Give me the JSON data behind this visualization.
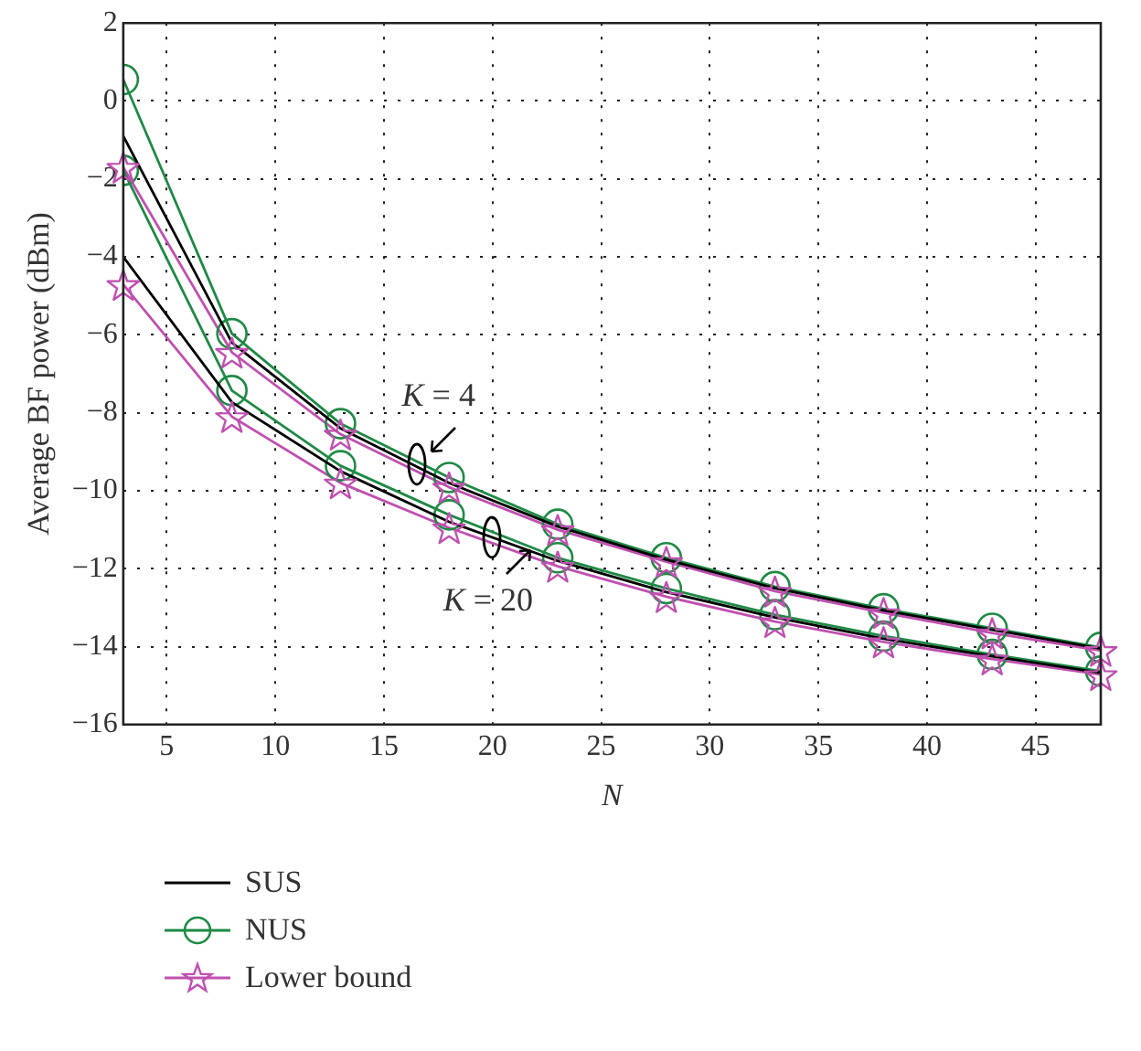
{
  "chart_data": {
    "type": "line",
    "xlabel": "N",
    "ylabel": "Average BF power (dBm)",
    "x": [
      3,
      8,
      13,
      18,
      23,
      28,
      33,
      38,
      43,
      48
    ],
    "series": [
      {
        "name": "SUS",
        "color": "#000000",
        "marker": "none",
        "values": [
          -0.9,
          -6.2,
          -8.4,
          -9.8,
          -10.92,
          -11.77,
          -12.5,
          -13.07,
          -13.57,
          -14.05
        ]
      },
      {
        "color": "#000000",
        "marker": "none",
        "values": [
          -4.0,
          -7.73,
          -9.5,
          -10.8,
          -11.8,
          -12.6,
          -13.25,
          -13.8,
          -14.25,
          -14.67
        ]
      },
      {
        "name": "NUS",
        "color": "#1e8a44",
        "marker": "circle",
        "values": [
          0.55,
          -5.97,
          -8.28,
          -9.66,
          -10.86,
          -11.72,
          -12.46,
          -13.03,
          -13.53,
          -14.02
        ]
      },
      {
        "color": "#1e8a44",
        "marker": "circle",
        "values": [
          -1.78,
          -7.43,
          -9.36,
          -10.62,
          -11.72,
          -12.51,
          -13.18,
          -13.73,
          -14.2,
          -14.63
        ]
      },
      {
        "name": "Lower bound",
        "color": "#c050b0",
        "marker": "star",
        "values": [
          -1.7,
          -6.45,
          -8.55,
          -9.91,
          -11.0,
          -11.82,
          -12.58,
          -13.13,
          -13.65,
          -14.1
        ]
      },
      {
        "color": "#c050b0",
        "marker": "star",
        "values": [
          -4.71,
          -8.1,
          -9.8,
          -10.95,
          -11.94,
          -12.72,
          -13.36,
          -13.88,
          -14.32,
          -14.72
        ]
      }
    ],
    "xlim": [
      3,
      48
    ],
    "xticks": [
      5,
      10,
      15,
      20,
      25,
      30,
      35,
      40,
      45
    ],
    "ylim": [
      -16,
      2
    ],
    "yticks": [
      -16,
      -14,
      -12,
      -10,
      -8,
      -6,
      -4,
      -2,
      0,
      2
    ],
    "grid": true,
    "legend": "bottom left",
    "line_style": "solid",
    "annotations": [
      {
        "text": "K = 4",
        "x": 16.5,
        "y": -9.3
      },
      {
        "text": "K = 20",
        "x": 20,
        "y": -11.2
      }
    ]
  }
}
